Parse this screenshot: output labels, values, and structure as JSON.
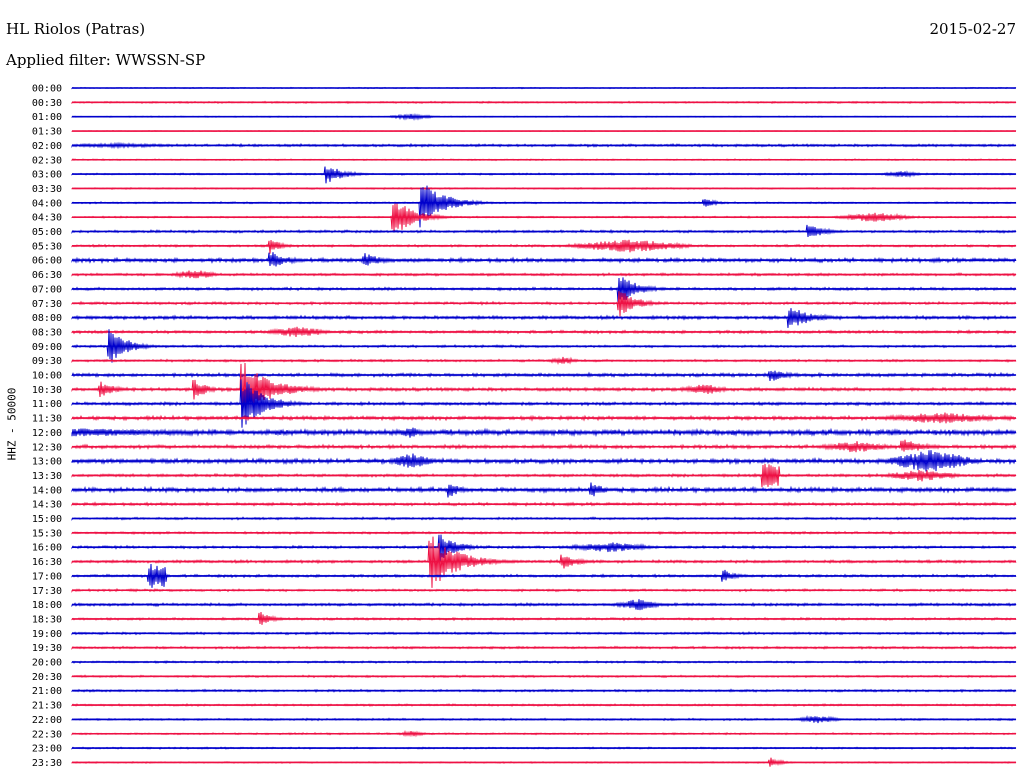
{
  "header": {
    "station": "HL Riolos (Patras)",
    "date": "2015-02-27",
    "filter": "Applied filter: WWSSN-SP"
  },
  "chart_data": {
    "type": "line",
    "title": "HL Riolos (Patras)",
    "subtitle": "Applied filter: WWSSN-SP",
    "ylabel": "HHZ - 50000",
    "xlabel": "",
    "colors": {
      "even_rows": "#0000cc",
      "odd_rows": "#ee1144"
    },
    "row_labels": [
      "00:00",
      "00:30",
      "01:00",
      "01:30",
      "02:00",
      "02:30",
      "03:00",
      "03:30",
      "04:00",
      "04:30",
      "05:00",
      "05:30",
      "06:00",
      "06:30",
      "07:00",
      "07:30",
      "08:00",
      "08:30",
      "09:00",
      "09:30",
      "10:00",
      "10:30",
      "11:00",
      "11:30",
      "12:00",
      "12:30",
      "13:00",
      "13:30",
      "14:00",
      "14:30",
      "15:00",
      "15:30",
      "16:00",
      "16:30",
      "17:00",
      "17:30",
      "18:00",
      "18:30",
      "19:00",
      "19:30",
      "20:00",
      "20:30",
      "21:00",
      "21:30",
      "22:00",
      "22:30",
      "23:00",
      "23:30"
    ],
    "noise": [
      0.4,
      0.6,
      0.4,
      0.3,
      0.9,
      0.5,
      0.6,
      0.5,
      0.6,
      0.6,
      0.9,
      0.8,
      1.4,
      0.9,
      1.0,
      0.9,
      1.2,
      1.0,
      0.8,
      0.8,
      1.2,
      1.2,
      1.1,
      1.3,
      2.0,
      1.3,
      1.6,
      1.0,
      1.6,
      1.0,
      0.8,
      0.8,
      0.9,
      1.0,
      0.9,
      0.8,
      1.0,
      0.8,
      0.8,
      0.8,
      0.7,
      0.7,
      0.8,
      0.7,
      0.7,
      0.6,
      0.6,
      0.5
    ],
    "events": [
      {
        "row": 2,
        "x": 0.36,
        "amp": 3,
        "dur": 0.03,
        "kind": "burst"
      },
      {
        "row": 4,
        "x": 0.05,
        "amp": 2,
        "dur": 0.1,
        "kind": "burst"
      },
      {
        "row": 6,
        "x": 0.27,
        "amp": 10,
        "dur": 0.03,
        "kind": "quake"
      },
      {
        "row": 6,
        "x": 0.88,
        "amp": 3,
        "dur": 0.03,
        "kind": "burst"
      },
      {
        "row": 8,
        "x": 0.37,
        "amp": 25,
        "dur": 0.04,
        "kind": "quake"
      },
      {
        "row": 8,
        "x": 0.67,
        "amp": 5,
        "dur": 0.02,
        "kind": "quake"
      },
      {
        "row": 9,
        "x": 0.34,
        "amp": 22,
        "dur": 0.035,
        "kind": "quake"
      },
      {
        "row": 9,
        "x": 0.85,
        "amp": 5,
        "dur": 0.05,
        "kind": "burst"
      },
      {
        "row": 10,
        "x": 0.78,
        "amp": 8,
        "dur": 0.03,
        "kind": "quake"
      },
      {
        "row": 11,
        "x": 0.21,
        "amp": 8,
        "dur": 0.02,
        "kind": "quake"
      },
      {
        "row": 11,
        "x": 0.59,
        "amp": 7,
        "dur": 0.08,
        "kind": "burst"
      },
      {
        "row": 12,
        "x": 0.21,
        "amp": 10,
        "dur": 0.03,
        "kind": "quake"
      },
      {
        "row": 12,
        "x": 0.31,
        "amp": 8,
        "dur": 0.03,
        "kind": "quake"
      },
      {
        "row": 13,
        "x": 0.13,
        "amp": 5,
        "dur": 0.03,
        "kind": "burst"
      },
      {
        "row": 14,
        "x": 0.58,
        "amp": 18,
        "dur": 0.03,
        "kind": "quake"
      },
      {
        "row": 15,
        "x": 0.58,
        "amp": 15,
        "dur": 0.03,
        "kind": "quake"
      },
      {
        "row": 16,
        "x": 0.76,
        "amp": 12,
        "dur": 0.04,
        "kind": "quake"
      },
      {
        "row": 17,
        "x": 0.24,
        "amp": 6,
        "dur": 0.04,
        "kind": "burst"
      },
      {
        "row": 18,
        "x": 0.04,
        "amp": 22,
        "dur": 0.03,
        "kind": "quake"
      },
      {
        "row": 19,
        "x": 0.52,
        "amp": 4,
        "dur": 0.02,
        "kind": "burst"
      },
      {
        "row": 20,
        "x": 0.74,
        "amp": 8,
        "dur": 0.03,
        "kind": "quake"
      },
      {
        "row": 21,
        "x": 0.03,
        "amp": 8,
        "dur": 0.03,
        "kind": "quake"
      },
      {
        "row": 21,
        "x": 0.13,
        "amp": 12,
        "dur": 0.02,
        "kind": "quake"
      },
      {
        "row": 21,
        "x": 0.18,
        "amp": 30,
        "dur": 0.05,
        "kind": "quake"
      },
      {
        "row": 21,
        "x": 0.67,
        "amp": 6,
        "dur": 0.03,
        "kind": "burst"
      },
      {
        "row": 22,
        "x": 0.18,
        "amp": 28,
        "dur": 0.04,
        "kind": "quake"
      },
      {
        "row": 23,
        "x": 0.92,
        "amp": 6,
        "dur": 0.08,
        "kind": "burst"
      },
      {
        "row": 24,
        "x": 0.0,
        "amp": 4,
        "dur": 0.25,
        "kind": "burst"
      },
      {
        "row": 24,
        "x": 0.36,
        "amp": 6,
        "dur": 0.02,
        "kind": "burst"
      },
      {
        "row": 25,
        "x": 0.83,
        "amp": 6,
        "dur": 0.05,
        "kind": "burst"
      },
      {
        "row": 25,
        "x": 0.88,
        "amp": 8,
        "dur": 0.04,
        "kind": "quake"
      },
      {
        "row": 26,
        "x": 0.36,
        "amp": 8,
        "dur": 0.03,
        "kind": "burst"
      },
      {
        "row": 26,
        "x": 0.91,
        "amp": 12,
        "dur": 0.06,
        "kind": "burst"
      },
      {
        "row": 27,
        "x": 0.73,
        "amp": 12,
        "dur": 0.02,
        "kind": "block"
      },
      {
        "row": 27,
        "x": 0.9,
        "amp": 6,
        "dur": 0.05,
        "kind": "burst"
      },
      {
        "row": 28,
        "x": 0.4,
        "amp": 8,
        "dur": 0.02,
        "kind": "quake"
      },
      {
        "row": 28,
        "x": 0.55,
        "amp": 10,
        "dur": 0.02,
        "kind": "quake"
      },
      {
        "row": 32,
        "x": 0.39,
        "amp": 15,
        "dur": 0.03,
        "kind": "quake"
      },
      {
        "row": 32,
        "x": 0.57,
        "amp": 5,
        "dur": 0.06,
        "kind": "burst"
      },
      {
        "row": 33,
        "x": 0.38,
        "amp": 28,
        "dur": 0.05,
        "kind": "quake"
      },
      {
        "row": 33,
        "x": 0.52,
        "amp": 8,
        "dur": 0.03,
        "kind": "quake"
      },
      {
        "row": 34,
        "x": 0.08,
        "amp": 12,
        "dur": 0.02,
        "kind": "block"
      },
      {
        "row": 34,
        "x": 0.69,
        "amp": 8,
        "dur": 0.02,
        "kind": "quake"
      },
      {
        "row": 36,
        "x": 0.6,
        "amp": 6,
        "dur": 0.03,
        "kind": "burst"
      },
      {
        "row": 37,
        "x": 0.2,
        "amp": 8,
        "dur": 0.02,
        "kind": "quake"
      },
      {
        "row": 44,
        "x": 0.79,
        "amp": 4,
        "dur": 0.03,
        "kind": "burst"
      },
      {
        "row": 45,
        "x": 0.36,
        "amp": 3,
        "dur": 0.02,
        "kind": "burst"
      },
      {
        "row": 47,
        "x": 0.74,
        "amp": 5,
        "dur": 0.02,
        "kind": "quake"
      }
    ]
  }
}
